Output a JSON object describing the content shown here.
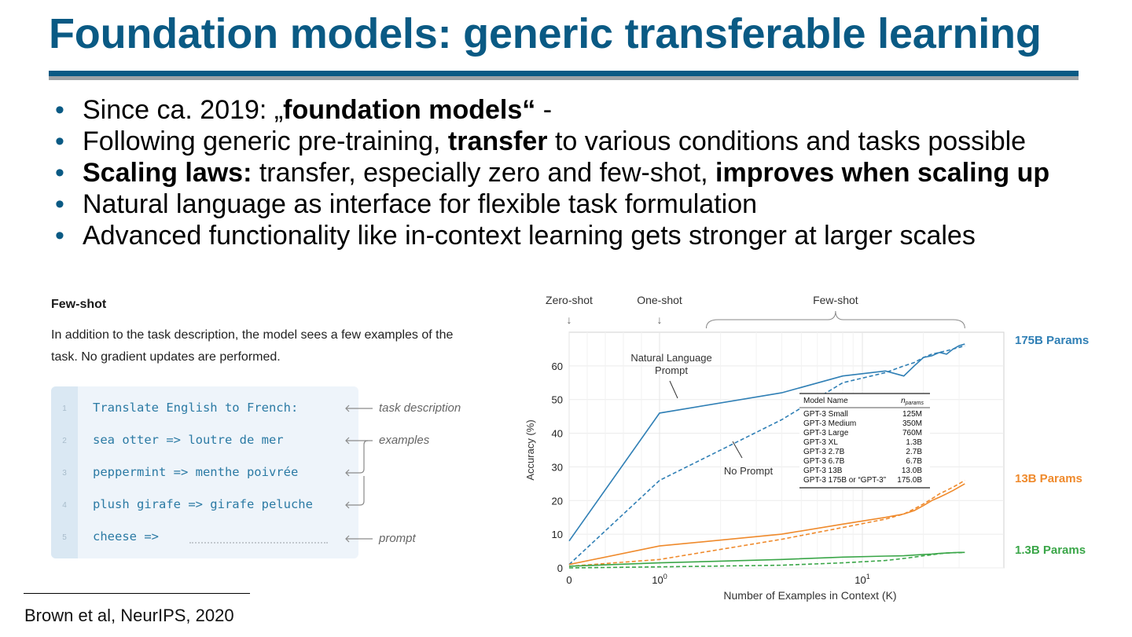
{
  "slide": {
    "title": "Foundation models: generic transferable learning",
    "bullets": [
      [
        {
          "t": "Since ca. 2019: „",
          "b": false
        },
        {
          "t": "foundation models“",
          "b": true
        },
        {
          "t": " -",
          "b": false
        }
      ],
      [
        {
          "t": "Following generic pre-training, ",
          "b": false
        },
        {
          "t": "transfer",
          "b": true
        },
        {
          "t": " to various conditions and tasks possible",
          "b": false
        }
      ],
      [
        {
          "t": "Scaling laws:",
          "b": true
        },
        {
          "t": " transfer, especially zero and few-shot, ",
          "b": false
        },
        {
          "t": "improves when scaling up",
          "b": true
        }
      ],
      [
        {
          "t": "Natural language as interface for flexible task formulation",
          "b": false
        }
      ],
      [
        {
          "t": "Advanced functionality like in-context learning gets stronger at larger scales",
          "b": false
        }
      ]
    ],
    "citation": "Brown et al, NeurIPS, 2020",
    "colors": {
      "title": "#0a5a84",
      "bullet": "#0a5a84",
      "rule_gray": "#9ea3a6"
    }
  },
  "fewshot": {
    "title": "Few-shot",
    "description": "In addition to the task description, the model sees a few examples of the task. No gradient updates are performed.",
    "lines": [
      {
        "num": "1",
        "code": "Translate English to French:"
      },
      {
        "num": "2",
        "code": "sea otter => loutre de mer"
      },
      {
        "num": "3",
        "code": "peppermint => menthe poivrée"
      },
      {
        "num": "4",
        "code": "plush girafe => girafe peluche"
      },
      {
        "num": "5",
        "code": "cheese =>"
      }
    ],
    "annotations": {
      "task": "task description",
      "examples": "examples",
      "prompt": "prompt"
    }
  },
  "chart_data": {
    "type": "line",
    "xlabel": "Number of Examples in Context  (K)",
    "ylabel": "Accuracy (%)",
    "xscale": "symlog",
    "xticks": [
      {
        "v": 0,
        "label": "0"
      },
      {
        "v": 1,
        "label": "10",
        "sup": "0"
      },
      {
        "v": 10,
        "label": "10",
        "sup": "1"
      }
    ],
    "xlim": [
      0,
      32
    ],
    "ylim": [
      0,
      70
    ],
    "yticks": [
      0,
      10,
      20,
      30,
      40,
      50,
      60
    ],
    "grid": true,
    "top_labels": {
      "zero": "Zero-shot",
      "one": "One-shot",
      "few": "Few-shot"
    },
    "annotations": {
      "nl_prompt": [
        "Natural Language",
        "Prompt"
      ],
      "no_prompt": "No Prompt"
    },
    "series": [
      {
        "name": "175B Params",
        "color": "#2f7fb5",
        "style": "solid",
        "x": [
          0,
          1,
          4,
          8,
          13,
          16,
          18,
          20,
          22,
          24,
          26,
          28,
          30,
          32
        ],
        "y": [
          8,
          46,
          52,
          57,
          58.5,
          57,
          60,
          62.5,
          63,
          64,
          63.5,
          65,
          66,
          66.5
        ]
      },
      {
        "name": "175B Params",
        "color": "#2f7fb5",
        "style": "dashed",
        "x": [
          0,
          1,
          4,
          8,
          13,
          16,
          18,
          20,
          22,
          24,
          26,
          28,
          30,
          32
        ],
        "y": [
          1,
          26,
          44,
          55,
          58,
          60,
          61,
          62.5,
          63.5,
          64,
          64.5,
          65,
          65.5,
          66
        ]
      },
      {
        "name": "13B Params",
        "color": "#ef8a2c",
        "style": "solid",
        "x": [
          0,
          1,
          4,
          8,
          13,
          16,
          18,
          20,
          22,
          24,
          26,
          28,
          30,
          32
        ],
        "y": [
          1,
          6.5,
          10,
          13,
          15,
          16,
          17,
          18.5,
          20,
          21,
          22,
          23,
          24,
          25
        ]
      },
      {
        "name": "13B Params",
        "color": "#ef8a2c",
        "style": "dashed",
        "x": [
          0,
          1,
          4,
          8,
          13,
          16,
          18,
          20,
          22,
          24,
          26,
          28,
          30,
          32
        ],
        "y": [
          0.5,
          2.5,
          8.5,
          12,
          14.5,
          16,
          17.5,
          19,
          20.5,
          22,
          23,
          24,
          25,
          26
        ]
      },
      {
        "name": "1.3B Params",
        "color": "#3aa648",
        "style": "solid",
        "x": [
          0,
          1,
          4,
          8,
          13,
          16,
          18,
          20,
          22,
          24,
          26,
          28,
          30,
          32
        ],
        "y": [
          0.5,
          1.5,
          2.5,
          3.2,
          3.5,
          3.6,
          3.8,
          4,
          4.1,
          4.3,
          4.4,
          4.5,
          4.6,
          4.6
        ]
      },
      {
        "name": "1.3B Params",
        "color": "#3aa648",
        "style": "dashed",
        "x": [
          0,
          1,
          4,
          8,
          13,
          16,
          18,
          20,
          22,
          24,
          26,
          28,
          30,
          32
        ],
        "y": [
          0,
          0.3,
          0.8,
          1.5,
          2.2,
          2.8,
          3.2,
          3.6,
          3.9,
          4.2,
          4.4,
          4.5,
          4.5,
          4.6
        ]
      }
    ],
    "right_labels": [
      {
        "text": "175B Params",
        "color": "#2f7fb5"
      },
      {
        "text": "13B Params",
        "color": "#ef8a2c"
      },
      {
        "text": "1.3B Params",
        "color": "#3aa648"
      }
    ],
    "table": {
      "headers": [
        "Model Name",
        "n",
        "params"
      ],
      "rows": [
        [
          "GPT-3 Small",
          "125M"
        ],
        [
          "GPT-3 Medium",
          "350M"
        ],
        [
          "GPT-3 Large",
          "760M"
        ],
        [
          "GPT-3 XL",
          "1.3B"
        ],
        [
          "GPT-3 2.7B",
          "2.7B"
        ],
        [
          "GPT-3 6.7B",
          "6.7B"
        ],
        [
          "GPT-3 13B",
          "13.0B"
        ],
        [
          "GPT-3 175B or “GPT-3”",
          "175.0B"
        ]
      ]
    }
  }
}
